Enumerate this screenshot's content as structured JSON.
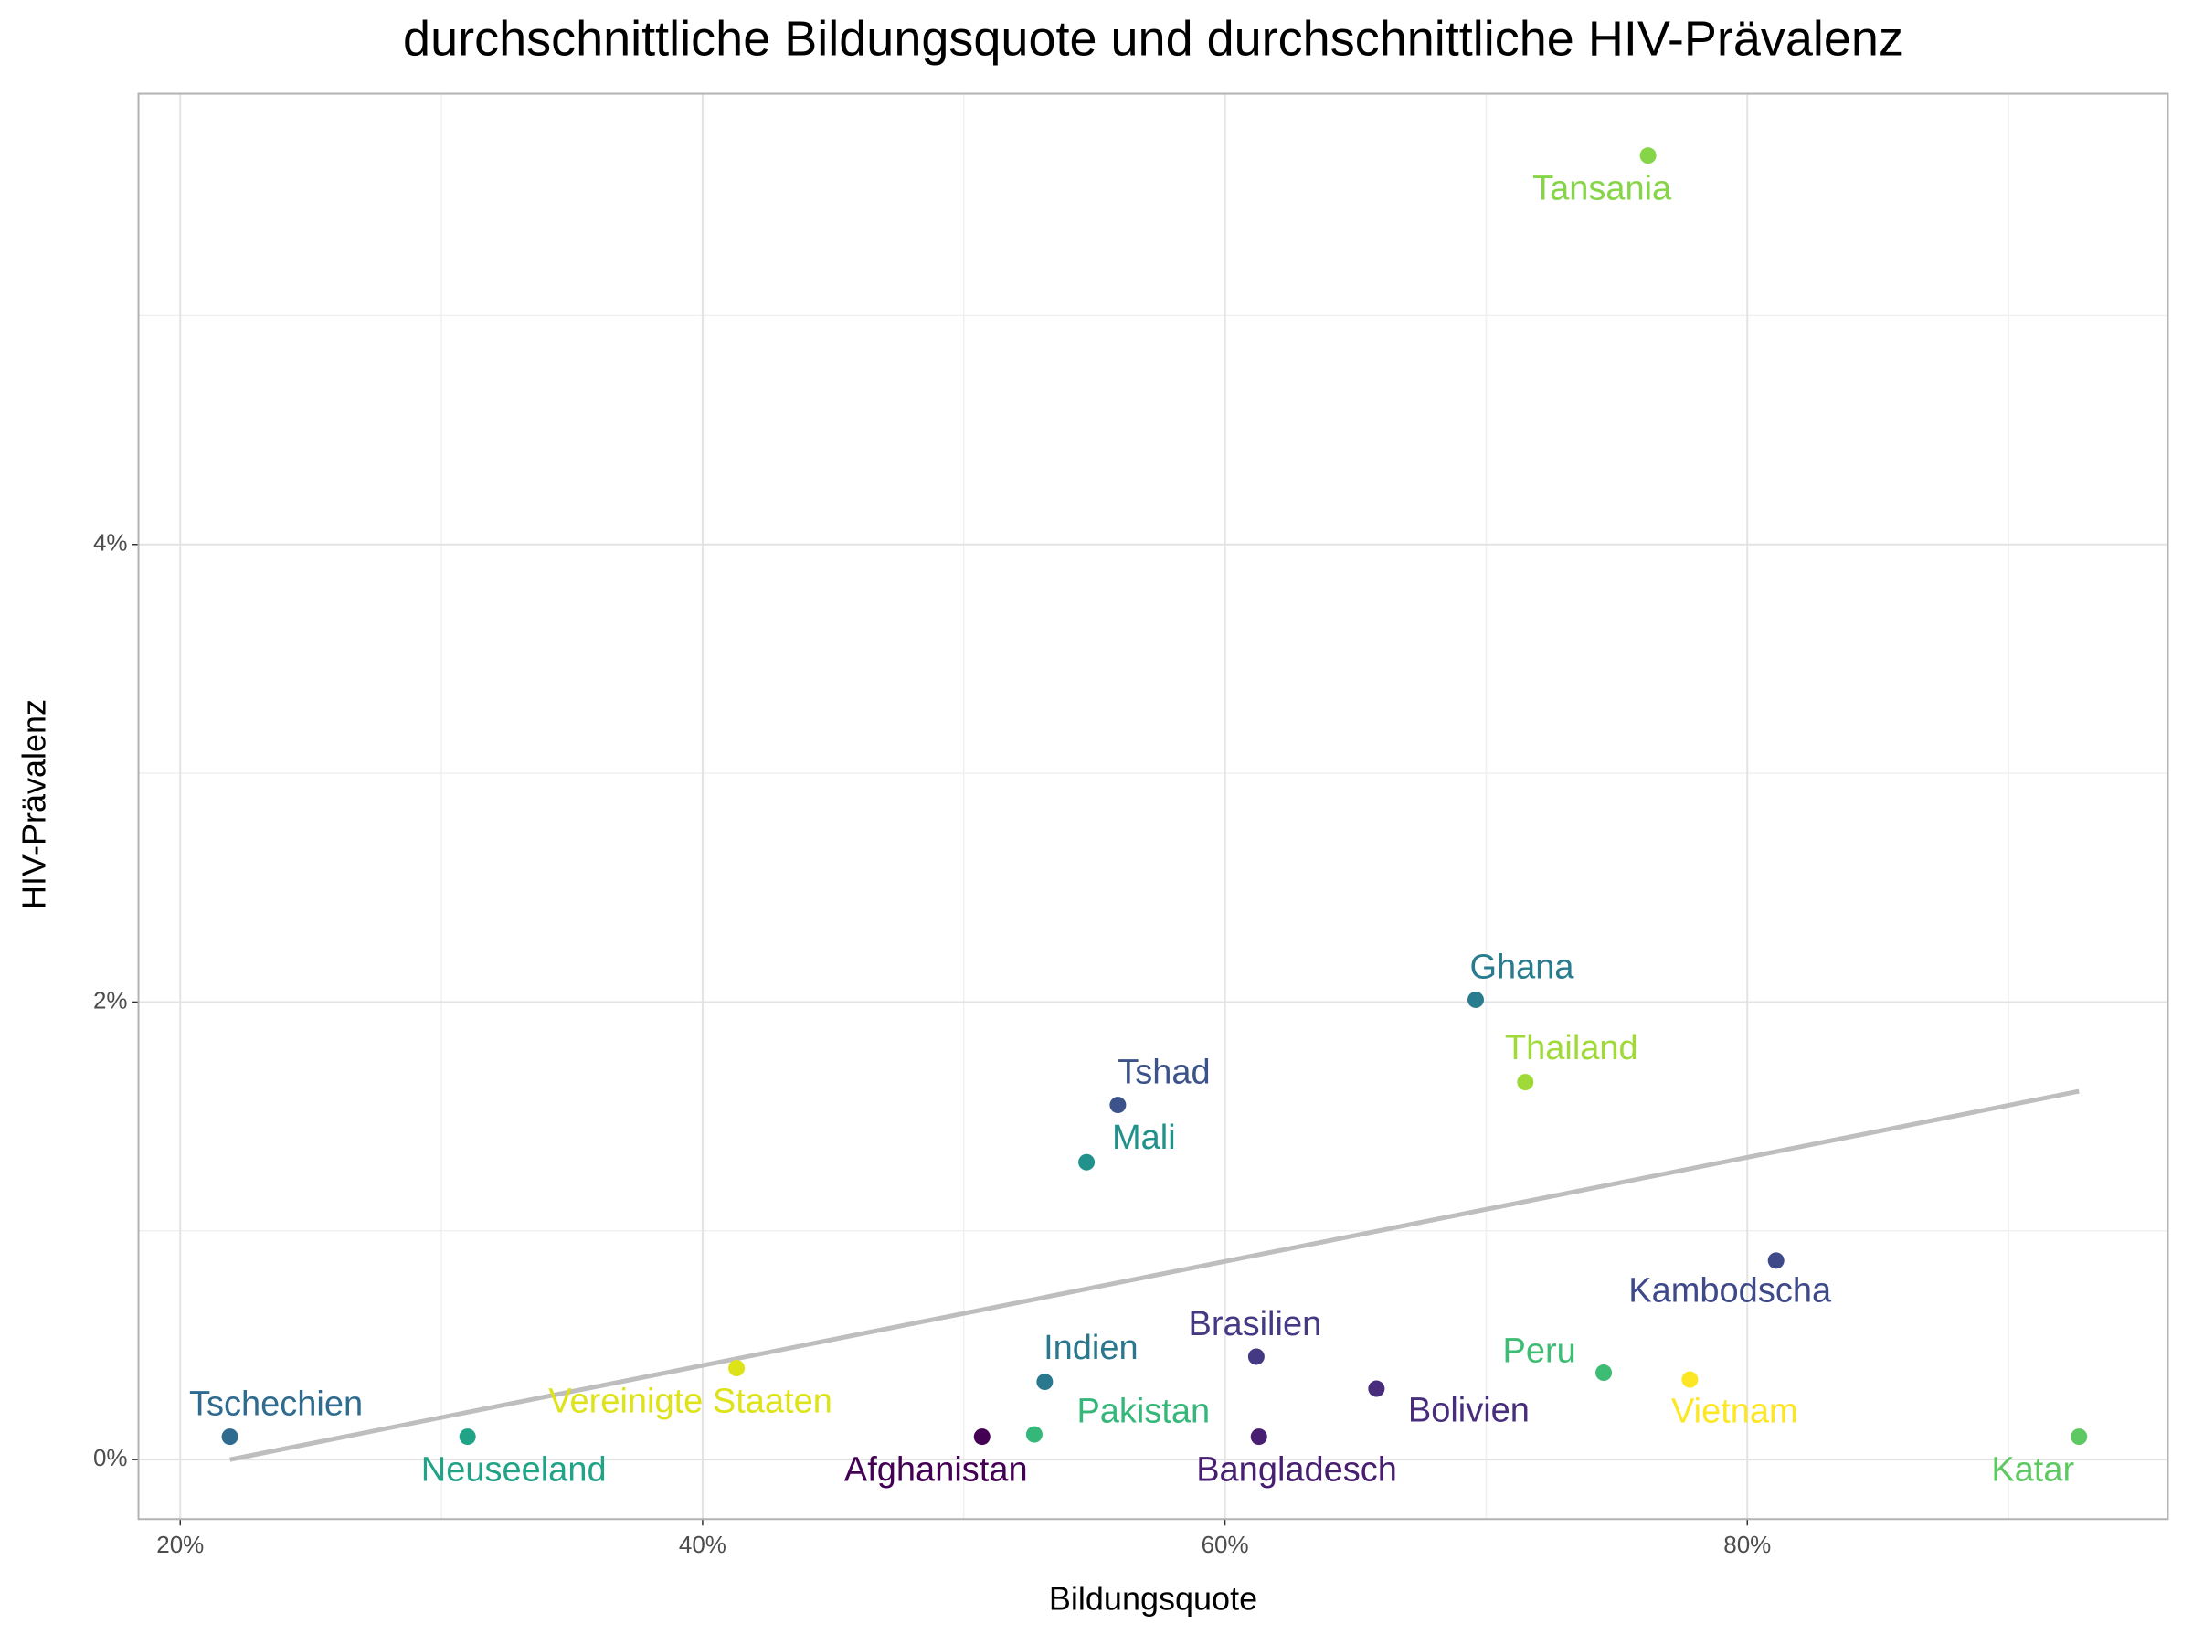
{
  "chart_data": {
    "type": "scatter",
    "title": "durchschnittliche Bildungsquote und durchschnittliche HIV-Prävalenz",
    "x_label": "Bildungsquote",
    "y_label": "HIV-Prävalenz",
    "labels": [
      "Tschechien",
      "Neuseeland",
      "Vereinigte Staaten",
      "Afghanistan",
      "Pakistan",
      "Indien",
      "Mali",
      "Tshad",
      "Brasilien",
      "Bangladesch",
      "Bolivien",
      "Ghana",
      "Thailand",
      "Peru",
      "Tansania",
      "Vietnam",
      "Kambodscha",
      "Katar"
    ],
    "x": [
      21.9,
      31.0,
      41.3,
      50.7,
      52.7,
      53.1,
      54.7,
      55.9,
      61.2,
      61.3,
      65.8,
      69.6,
      71.5,
      74.5,
      76.2,
      77.8,
      81.1,
      92.7
    ],
    "values": [
      0.1,
      0.1,
      0.4,
      0.1,
      0.11,
      0.34,
      1.3,
      1.55,
      0.45,
      0.1,
      0.31,
      2.01,
      1.65,
      0.38,
      5.7,
      0.35,
      0.87,
      0.1
    ],
    "colors": [
      "#2f6b8e",
      "#20a386",
      "#dde318",
      "#440154",
      "#35b779",
      "#2a788e",
      "#21918c",
      "#3b528b",
      "#443a83",
      "#481f70",
      "#472d7b",
      "#287c8e",
      "#a0da39",
      "#3dbc74",
      "#86d549",
      "#fde725",
      "#3e4989",
      "#5ec962"
    ],
    "trend_line": {
      "x": [
        21.9,
        92.7
      ],
      "y": [
        0.0,
        1.61
      ],
      "color": "#bebebe"
    },
    "xlim": [
      18.4,
      96.1
    ],
    "ylim": [
      -0.26,
      5.97
    ],
    "xticks": [
      {
        "value": 20,
        "label": "20%"
      },
      {
        "value": 40,
        "label": "40%"
      },
      {
        "value": 60,
        "label": "60%"
      },
      {
        "value": 80,
        "label": "80%"
      }
    ],
    "yticks": [
      {
        "value": 0,
        "label": "0%"
      },
      {
        "value": 2,
        "label": "2%"
      },
      {
        "value": 4,
        "label": "4%"
      }
    ],
    "x_minor_grid": [
      30,
      50,
      70,
      90
    ],
    "y_minor_grid": [
      1,
      3,
      5
    ],
    "grid": true
  }
}
